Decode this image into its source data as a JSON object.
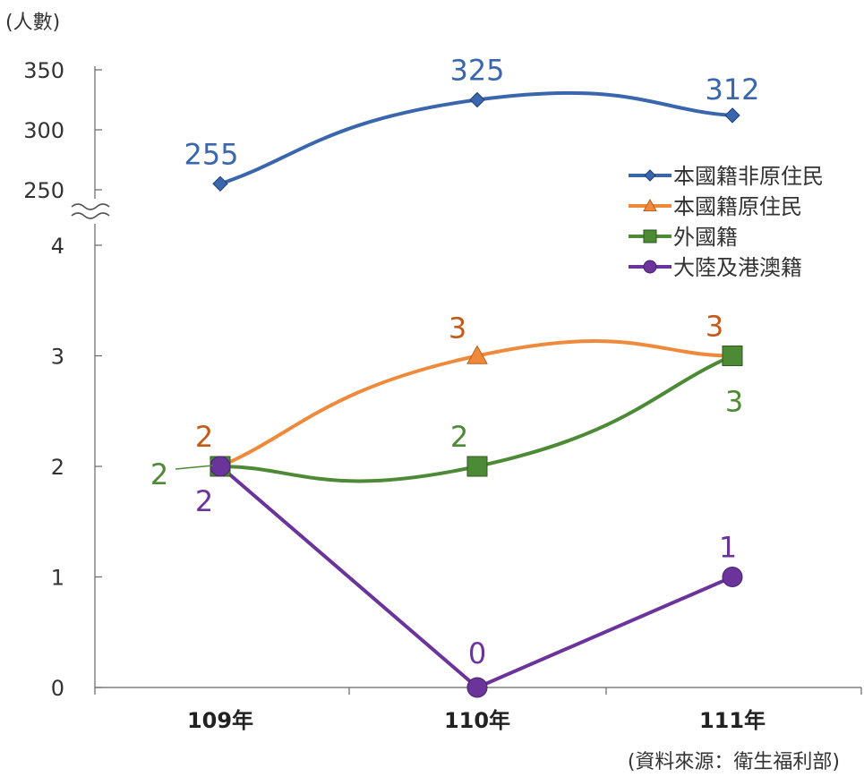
{
  "chart_data": {
    "type": "line",
    "ylabel": "(人數)",
    "source": "(資料來源：衛生福利部)",
    "categories": [
      "109年",
      "110年",
      "111年"
    ],
    "y_ticks_upper": [
      350,
      300,
      250
    ],
    "y_ticks_lower": [
      4,
      3,
      2,
      1,
      0
    ],
    "y_axis": "broken",
    "ylim_upper": [
      250,
      350
    ],
    "ylim_lower": [
      0,
      4
    ],
    "legend_position": "right",
    "series": [
      {
        "name": "本國籍非原住民",
        "values": [
          255,
          325,
          312
        ],
        "labels": [
          "255",
          "325",
          "312"
        ],
        "color": "#3a66ad",
        "marker": "diamond",
        "axis": "upper",
        "smooth": true
      },
      {
        "name": "本國籍原住民",
        "values": [
          2,
          3,
          3
        ],
        "labels": [
          "2",
          "3",
          "3"
        ],
        "color": "#ef8a3c",
        "marker": "triangle",
        "axis": "lower",
        "smooth": true,
        "label_color": "#c35a1b"
      },
      {
        "name": "外國籍",
        "values": [
          2,
          2,
          3
        ],
        "labels": [
          "2",
          "2",
          "3"
        ],
        "color": "#4d8a35",
        "marker": "square",
        "axis": "lower",
        "smooth": true
      },
      {
        "name": "大陸及港澳籍",
        "values": [
          2,
          0,
          1
        ],
        "labels": [
          "2",
          "0",
          "1"
        ],
        "color": "#6b349a",
        "marker": "circle",
        "axis": "lower",
        "smooth": false
      }
    ]
  }
}
